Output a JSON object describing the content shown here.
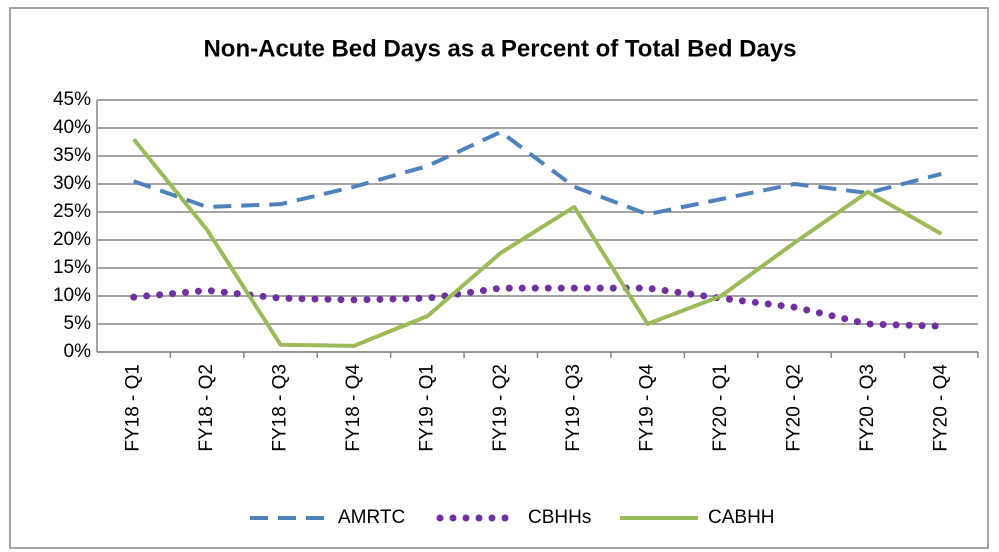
{
  "chart_data": {
    "type": "line",
    "title": "Non-Acute Bed Days as a Percent of Total Bed Days",
    "categories": [
      "FY18 - Q1",
      "FY18 - Q2",
      "FY18 - Q3",
      "FY18 - Q4",
      "FY19 - Q1",
      "FY19 - Q2",
      "FY19 - Q3",
      "FY19 - Q4",
      "FY20 - Q1",
      "FY20 - Q2",
      "FY20 - Q3",
      "FY20 - Q4"
    ],
    "series": [
      {
        "name": "AMRTC",
        "color": "#4f81bd",
        "style": "dashed",
        "values": [
          30.5,
          25.9,
          26.4,
          29.5,
          33.2,
          39.3,
          29.5,
          24.6,
          27.3,
          30,
          28.4,
          31.8
        ]
      },
      {
        "name": "CBHHs",
        "color": "#7030a0",
        "style": "dotted",
        "values": [
          9.8,
          11,
          9.6,
          9.3,
          9.6,
          11.4,
          11.4,
          11.4,
          9.6,
          8,
          5,
          4.6
        ]
      },
      {
        "name": "CABHH",
        "color": "#9bbb59",
        "style": "solid",
        "values": [
          38,
          21.8,
          1.3,
          1.1,
          6.4,
          17.7,
          25.9,
          5,
          10,
          19.5,
          28.6,
          21.1
        ]
      }
    ],
    "ylim": [
      0,
      45
    ],
    "yticks": [
      {
        "value": 0,
        "label": "0%"
      },
      {
        "value": 5,
        "label": "5%"
      },
      {
        "value": 10,
        "label": "10%"
      },
      {
        "value": 15,
        "label": "15%"
      },
      {
        "value": 20,
        "label": "20%"
      },
      {
        "value": 25,
        "label": "25%"
      },
      {
        "value": 30,
        "label": "30%"
      },
      {
        "value": 35,
        "label": "35%"
      },
      {
        "value": 40,
        "label": "40%"
      },
      {
        "value": 45,
        "label": "45%"
      }
    ],
    "grid": true,
    "legend": "bottom"
  }
}
